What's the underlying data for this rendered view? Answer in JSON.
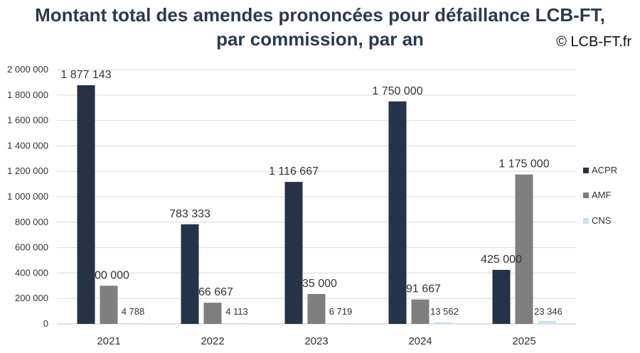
{
  "header": {
    "title_line1": "Montant total des amendes prononcées pour défaillance LCB-FT,",
    "title_line2": "par commission, par an",
    "credit": "© LCB-FT.fr"
  },
  "chart_data": {
    "type": "bar",
    "title": "Montant total des amendes prononcées pour défaillance LCB-FT, par commission, par an",
    "categories": [
      "2021",
      "2022",
      "2023",
      "2024",
      "2025"
    ],
    "series": [
      {
        "name": "ACPR",
        "color": "#263248",
        "values": [
          1877143,
          783333,
          1116667,
          1750000,
          425000
        ],
        "labels": [
          "1 877 143",
          "783 333",
          "1 116 667",
          "1 750 000",
          "425 000"
        ]
      },
      {
        "name": "AMF",
        "color": "#7f7f7f",
        "values": [
          300000,
          166667,
          235000,
          191667,
          1175000
        ],
        "labels": [
          "300 000",
          "166 667",
          "235 000",
          "191 667",
          "1 175 000"
        ]
      },
      {
        "name": "CNS",
        "color": "#c5e4f2",
        "values": [
          4788,
          4113,
          6719,
          13562,
          23346
        ],
        "labels": [
          "4 788",
          "4 113",
          "6 719",
          "13 562",
          "23 346"
        ]
      }
    ],
    "ylim": [
      0,
      2000000
    ],
    "y_ticks": [
      0,
      200000,
      400000,
      600000,
      800000,
      1000000,
      1200000,
      1400000,
      1600000,
      1800000,
      2000000
    ],
    "y_tick_labels": [
      "0",
      "200 000",
      "400 000",
      "600 000",
      "800 000",
      "1 000 000",
      "1 200 000",
      "1 400 000",
      "1 600 000",
      "1 800 000",
      "2 000 000"
    ],
    "grid": true,
    "legend_position": "right"
  }
}
